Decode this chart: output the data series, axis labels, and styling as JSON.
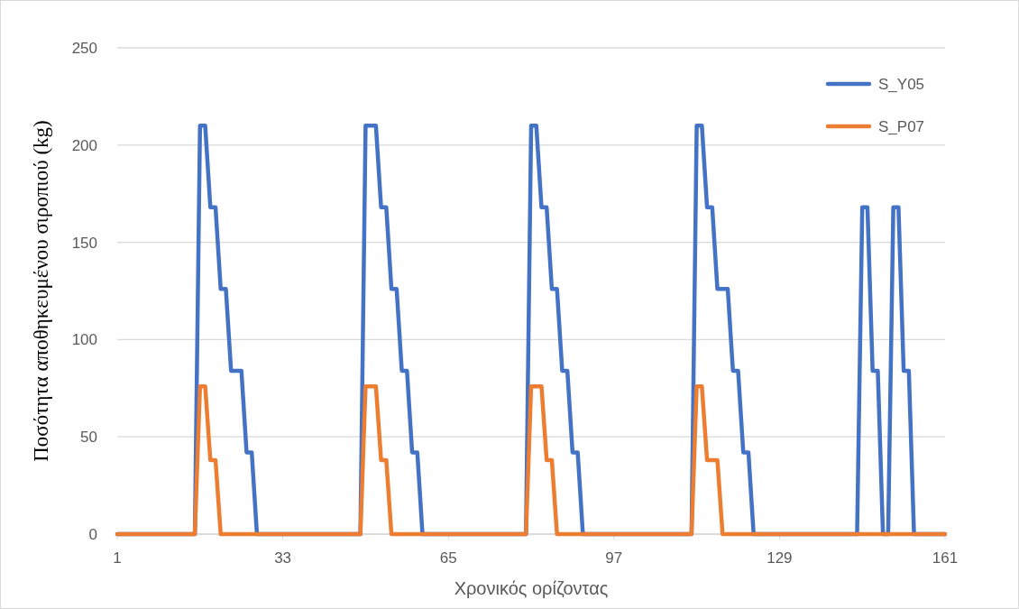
{
  "chart_data": {
    "type": "line",
    "xlabel": "Χρονικός ορίζοντας",
    "ylabel": "Ποσότητα αποθηκευμένου σιροπιού (kg)",
    "xlim": [
      1,
      161
    ],
    "xticks": [
      1,
      33,
      65,
      97,
      129,
      161
    ],
    "ylim": [
      0,
      250
    ],
    "yticks": [
      0,
      50,
      100,
      150,
      200,
      250
    ],
    "grid": "y",
    "legend": "top right",
    "marker": "none",
    "line_style": "solid",
    "series": [
      {
        "name": "S_Y05",
        "color": "#4472c4",
        "x": [
          1,
          16,
          17,
          18,
          19,
          20,
          21,
          22,
          23,
          25,
          26,
          27,
          28,
          48,
          49,
          51,
          52,
          53,
          54,
          55,
          56,
          57,
          58,
          59,
          60,
          80,
          81,
          82,
          83,
          84,
          85,
          86,
          87,
          88,
          89,
          90,
          91,
          112,
          113,
          114,
          115,
          116,
          117,
          119,
          120,
          121,
          122,
          123,
          124,
          144,
          145,
          146,
          147,
          148,
          149,
          150,
          151,
          152,
          153,
          154,
          155,
          161
        ],
        "values": [
          0,
          0,
          210,
          210,
          168,
          168,
          126,
          126,
          84,
          84,
          42,
          42,
          0,
          0,
          210,
          210,
          168,
          168,
          126,
          126,
          84,
          84,
          42,
          42,
          0,
          0,
          210,
          210,
          168,
          168,
          126,
          126,
          84,
          84,
          42,
          42,
          0,
          0,
          210,
          210,
          168,
          168,
          126,
          126,
          84,
          84,
          42,
          42,
          0,
          0,
          168,
          168,
          84,
          84,
          0,
          0,
          168,
          168,
          84,
          84,
          0,
          0
        ]
      },
      {
        "name": "S_P07",
        "color": "#ed7d31",
        "x": [
          1,
          16,
          17,
          18,
          19,
          20,
          21,
          48,
          49,
          51,
          52,
          53,
          54,
          80,
          81,
          83,
          84,
          85,
          86,
          112,
          113,
          114,
          115,
          117,
          118,
          161
        ],
        "values": [
          0,
          0,
          76,
          76,
          38,
          38,
          0,
          0,
          76,
          76,
          38,
          38,
          0,
          0,
          76,
          76,
          38,
          38,
          0,
          0,
          76,
          76,
          38,
          38,
          0,
          0
        ]
      }
    ]
  }
}
